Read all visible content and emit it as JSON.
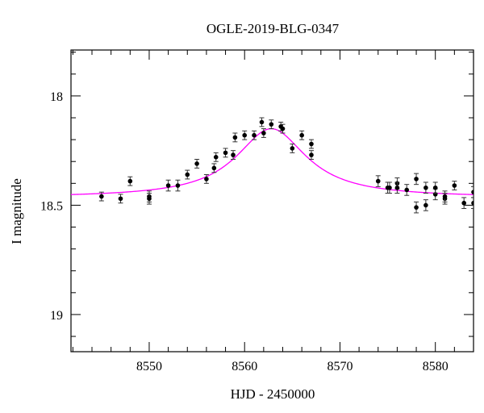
{
  "chart_data": {
    "type": "scatter",
    "title": "OGLE-2019-BLG-0347",
    "xlabel": "HJD - 2450000",
    "ylabel": "I magnitude",
    "xlim": [
      8541.8,
      8584.0
    ],
    "ylim": [
      19.17,
      17.79
    ],
    "y_inverted": true,
    "x_ticks": [
      8550,
      8560,
      8570,
      8580
    ],
    "x_tick_labels": [
      "8550",
      "8560",
      "8570",
      "8580"
    ],
    "y_ticks": [
      18,
      18.5,
      19
    ],
    "y_tick_labels": [
      "18",
      "18.5",
      "19"
    ],
    "grid": false,
    "colors": {
      "points": "#000000",
      "errorbars": "#333333",
      "model": "#ff00ff",
      "axes": "#000000"
    },
    "series": [
      {
        "marker": "circle",
        "x": [
          8545.0,
          8547.0,
          8548.0,
          8550.0,
          8550.0,
          8552.0,
          8553.0,
          8554.0,
          8555.0,
          8556.0,
          8556.8,
          8557.0,
          8558.0,
          8558.8,
          8559.0,
          8560.0,
          8561.0,
          8561.8,
          8562.0,
          8562.8,
          8563.8,
          8564.0,
          8565.0,
          8566.0,
          8567.0,
          8567.0,
          8574.0,
          8575.0,
          8575.2,
          8576.0,
          8576.0,
          8577.0,
          8578.0,
          8578.0,
          8579.0,
          8579.0,
          8580.0,
          8580.0,
          8581.0,
          8581.0,
          8582.0,
          8583.0,
          8584.0,
          8584.0
        ],
        "y": [
          18.46,
          18.47,
          18.39,
          18.46,
          18.47,
          18.41,
          18.41,
          18.36,
          18.31,
          18.38,
          18.33,
          18.28,
          18.26,
          18.27,
          18.19,
          18.18,
          18.18,
          18.12,
          18.17,
          18.13,
          18.14,
          18.15,
          18.24,
          18.18,
          18.27,
          18.22,
          18.39,
          18.42,
          18.42,
          18.4,
          18.42,
          18.43,
          18.38,
          18.51,
          18.42,
          18.5,
          18.45,
          18.42,
          18.47,
          18.46,
          18.41,
          18.49,
          18.44,
          18.49
        ],
        "yerr": [
          0.02,
          0.02,
          0.02,
          0.025,
          0.025,
          0.025,
          0.025,
          0.02,
          0.02,
          0.02,
          0.02,
          0.02,
          0.02,
          0.02,
          0.02,
          0.02,
          0.02,
          0.02,
          0.02,
          0.02,
          0.02,
          0.02,
          0.02,
          0.02,
          0.02,
          0.02,
          0.025,
          0.025,
          0.025,
          0.025,
          0.025,
          0.025,
          0.025,
          0.025,
          0.025,
          0.025,
          0.025,
          0.025,
          0.025,
          0.025,
          0.02,
          0.025,
          0.025,
          0.025
        ]
      }
    ],
    "model": {
      "type": "line",
      "t0": 8562.8,
      "peak_mag": 18.15,
      "baseline_mag": 18.465,
      "tau": 4.5
    }
  }
}
